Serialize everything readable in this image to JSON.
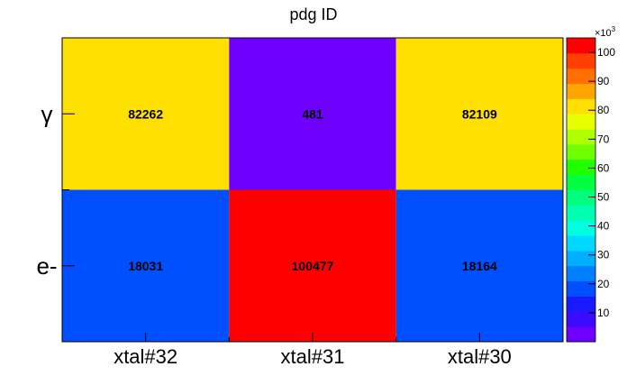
{
  "chart_data": {
    "type": "heatmap",
    "title": "pdg ID",
    "x_categories": [
      "xtal#32",
      "xtal#31",
      "xtal#30"
    ],
    "y_categories": [
      "e-",
      "γ"
    ],
    "values": [
      [
        18031,
        100477,
        18164
      ],
      [
        82262,
        481,
        82109
      ]
    ],
    "z_range": [
      0,
      105000
    ],
    "colorbar": {
      "multiplier_label": "×10",
      "multiplier_exponent": "3",
      "tick_values": [
        10,
        20,
        30,
        40,
        50,
        60,
        70,
        80,
        90,
        100
      ],
      "tick_labels": [
        "10",
        "20",
        "30",
        "40",
        "50",
        "60",
        "70",
        "80",
        "90",
        "100"
      ],
      "palette": [
        "#6f00ff",
        "#3a0bff",
        "#1a1aff",
        "#0050ff",
        "#0080ff",
        "#00b0ff",
        "#00d8ff",
        "#00ffe0",
        "#00ffb0",
        "#00ff80",
        "#00ff40",
        "#20ff00",
        "#70ff00",
        "#b0ff00",
        "#e8ff00",
        "#ffe000",
        "#ffa500",
        "#ff7000",
        "#ff4000",
        "#ff0000"
      ]
    },
    "cell_label_format": "integer",
    "grid": false,
    "legend": "colorbar-right"
  }
}
